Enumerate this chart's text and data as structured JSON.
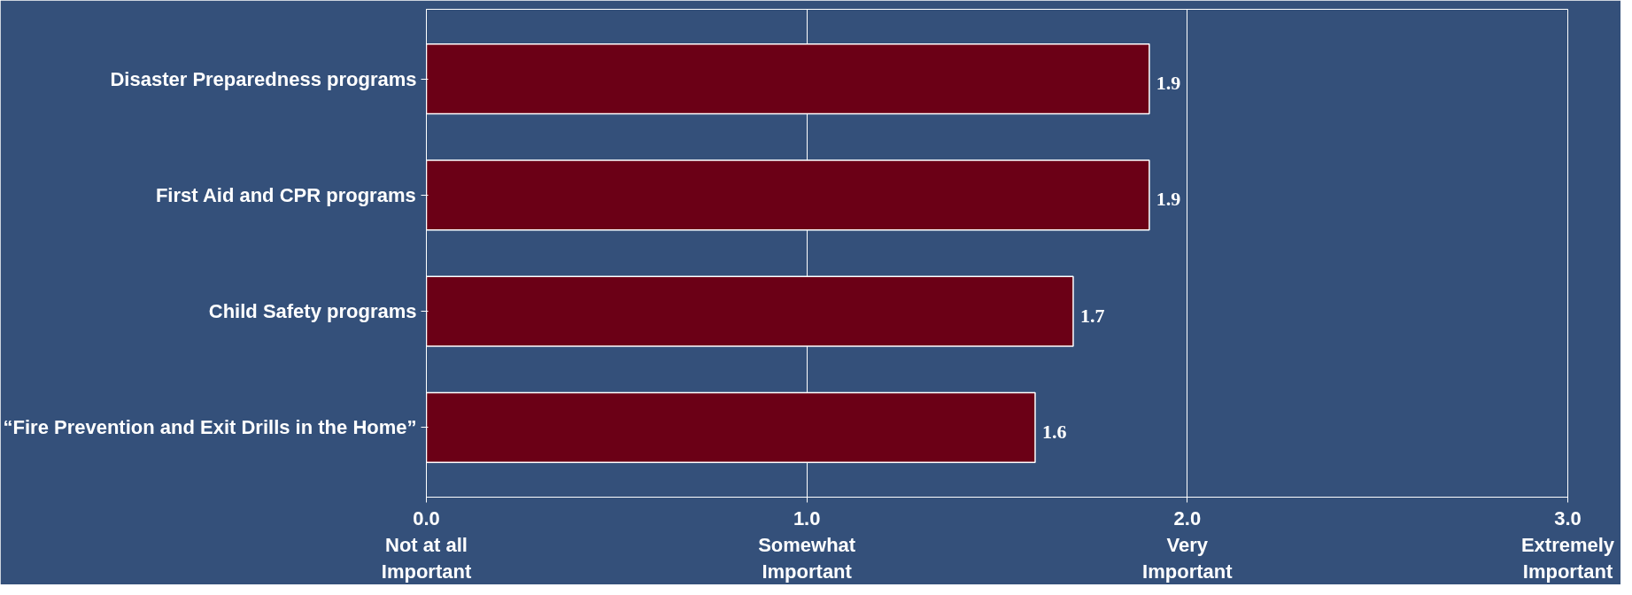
{
  "chart_data": {
    "type": "bar",
    "orientation": "horizontal",
    "categories": [
      "Disaster Preparedness programs",
      "First Aid and CPR programs",
      "Child Safety programs",
      "“Fire Prevention and Exit Drills in the Home”"
    ],
    "values": [
      1.9,
      1.9,
      1.7,
      1.6
    ],
    "color": "#6b0016",
    "data_labels": true,
    "grid": "x",
    "xlim": [
      0,
      3
    ],
    "xticks": [
      {
        "value": 0,
        "label": "0.0\nNot at all\nImportant"
      },
      {
        "value": 1,
        "label": "1.0\nSomewhat\nImportant"
      },
      {
        "value": 2,
        "label": "2.0\nVery\nImportant"
      },
      {
        "value": 3,
        "label": "3.0\nExtremely\nImportant"
      }
    ]
  }
}
